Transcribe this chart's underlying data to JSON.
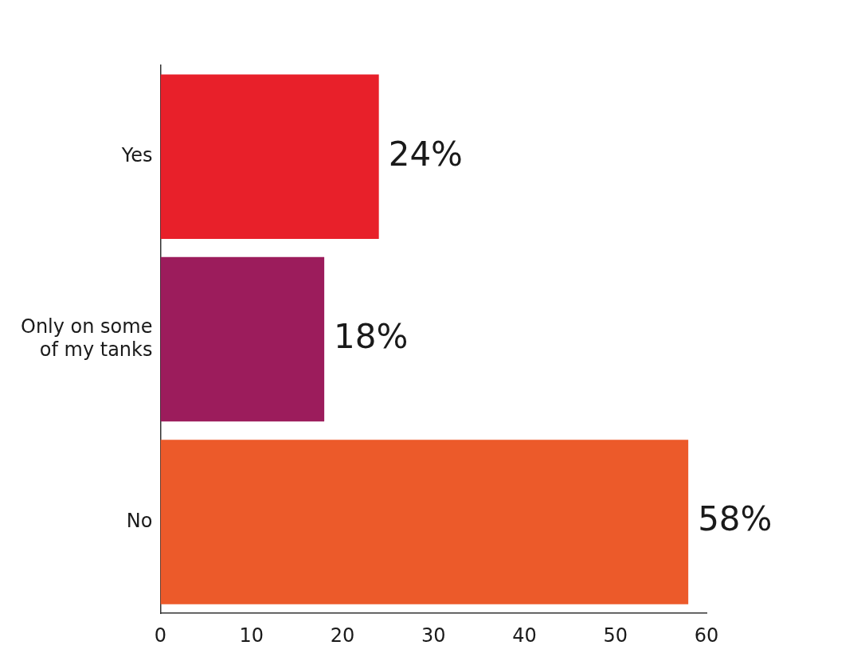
{
  "chart_data": {
    "type": "bar",
    "orientation": "horizontal",
    "categories": [
      "Yes",
      "Only on some of my tanks",
      "No"
    ],
    "values": [
      24,
      18,
      58
    ],
    "colors": [
      "#e8202a",
      "#9c1c5c",
      "#ec5a2a"
    ],
    "value_labels": [
      "24%",
      "18%",
      "58%"
    ],
    "xlim": [
      0,
      60
    ],
    "xticks": [
      0,
      10,
      20,
      30,
      40,
      50,
      60
    ],
    "grid": false,
    "legend": false
  }
}
